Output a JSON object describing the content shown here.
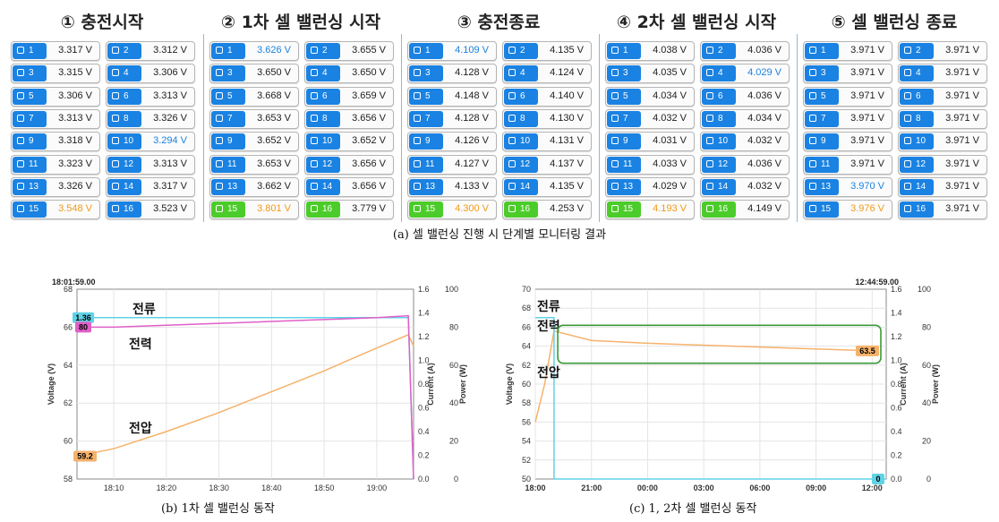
{
  "panels": [
    {
      "title": "① 충전시작",
      "cells": [
        {
          "n": "1",
          "v": "3.317 V",
          "c": "",
          "g": false
        },
        {
          "n": "2",
          "v": "3.312 V",
          "c": "",
          "g": false
        },
        {
          "n": "3",
          "v": "3.315 V",
          "c": "",
          "g": false
        },
        {
          "n": "4",
          "v": "3.306 V",
          "c": "",
          "g": false
        },
        {
          "n": "5",
          "v": "3.306 V",
          "c": "",
          "g": false
        },
        {
          "n": "6",
          "v": "3.313 V",
          "c": "",
          "g": false
        },
        {
          "n": "7",
          "v": "3.313 V",
          "c": "",
          "g": false
        },
        {
          "n": "8",
          "v": "3.326 V",
          "c": "",
          "g": false
        },
        {
          "n": "9",
          "v": "3.318 V",
          "c": "",
          "g": false
        },
        {
          "n": "10",
          "v": "3.294 V",
          "c": "blue",
          "g": false
        },
        {
          "n": "11",
          "v": "3.323 V",
          "c": "",
          "g": false
        },
        {
          "n": "12",
          "v": "3.313 V",
          "c": "",
          "g": false
        },
        {
          "n": "13",
          "v": "3.326 V",
          "c": "",
          "g": false
        },
        {
          "n": "14",
          "v": "3.317 V",
          "c": "",
          "g": false
        },
        {
          "n": "15",
          "v": "3.548 V",
          "c": "orange",
          "g": false
        },
        {
          "n": "16",
          "v": "3.523 V",
          "c": "",
          "g": false
        }
      ]
    },
    {
      "title": "② 1차 셀 밸런싱 시작",
      "cells": [
        {
          "n": "1",
          "v": "3.626 V",
          "c": "blue",
          "g": false
        },
        {
          "n": "2",
          "v": "3.655 V",
          "c": "",
          "g": false
        },
        {
          "n": "3",
          "v": "3.650 V",
          "c": "",
          "g": false
        },
        {
          "n": "4",
          "v": "3.650 V",
          "c": "",
          "g": false
        },
        {
          "n": "5",
          "v": "3.668 V",
          "c": "",
          "g": false
        },
        {
          "n": "6",
          "v": "3.659 V",
          "c": "",
          "g": false
        },
        {
          "n": "7",
          "v": "3.653 V",
          "c": "",
          "g": false
        },
        {
          "n": "8",
          "v": "3.656 V",
          "c": "",
          "g": false
        },
        {
          "n": "9",
          "v": "3.652 V",
          "c": "",
          "g": false
        },
        {
          "n": "10",
          "v": "3.652 V",
          "c": "",
          "g": false
        },
        {
          "n": "11",
          "v": "3.653 V",
          "c": "",
          "g": false
        },
        {
          "n": "12",
          "v": "3.656 V",
          "c": "",
          "g": false
        },
        {
          "n": "13",
          "v": "3.662 V",
          "c": "",
          "g": false
        },
        {
          "n": "14",
          "v": "3.656 V",
          "c": "",
          "g": false
        },
        {
          "n": "15",
          "v": "3.801 V",
          "c": "orange",
          "g": true
        },
        {
          "n": "16",
          "v": "3.779 V",
          "c": "",
          "g": true
        }
      ]
    },
    {
      "title": "③ 충전종료",
      "cells": [
        {
          "n": "1",
          "v": "4.109 V",
          "c": "blue",
          "g": false
        },
        {
          "n": "2",
          "v": "4.135 V",
          "c": "",
          "g": false
        },
        {
          "n": "3",
          "v": "4.128 V",
          "c": "",
          "g": false
        },
        {
          "n": "4",
          "v": "4.124 V",
          "c": "",
          "g": false
        },
        {
          "n": "5",
          "v": "4.148 V",
          "c": "",
          "g": false
        },
        {
          "n": "6",
          "v": "4.140 V",
          "c": "",
          "g": false
        },
        {
          "n": "7",
          "v": "4.128 V",
          "c": "",
          "g": false
        },
        {
          "n": "8",
          "v": "4.130 V",
          "c": "",
          "g": false
        },
        {
          "n": "9",
          "v": "4.126 V",
          "c": "",
          "g": false
        },
        {
          "n": "10",
          "v": "4.131 V",
          "c": "",
          "g": false
        },
        {
          "n": "11",
          "v": "4.127 V",
          "c": "",
          "g": false
        },
        {
          "n": "12",
          "v": "4.137 V",
          "c": "",
          "g": false
        },
        {
          "n": "13",
          "v": "4.133 V",
          "c": "",
          "g": false
        },
        {
          "n": "14",
          "v": "4.135 V",
          "c": "",
          "g": false
        },
        {
          "n": "15",
          "v": "4.300 V",
          "c": "orange",
          "g": true
        },
        {
          "n": "16",
          "v": "4.253 V",
          "c": "",
          "g": true
        }
      ]
    },
    {
      "title": "④ 2차 셀 밸런싱 시작",
      "cells": [
        {
          "n": "1",
          "v": "4.038 V",
          "c": "",
          "g": false
        },
        {
          "n": "2",
          "v": "4.036 V",
          "c": "",
          "g": false
        },
        {
          "n": "3",
          "v": "4.035 V",
          "c": "",
          "g": false
        },
        {
          "n": "4",
          "v": "4.029 V",
          "c": "blue",
          "g": false
        },
        {
          "n": "5",
          "v": "4.034 V",
          "c": "",
          "g": false
        },
        {
          "n": "6",
          "v": "4.036 V",
          "c": "",
          "g": false
        },
        {
          "n": "7",
          "v": "4.032 V",
          "c": "",
          "g": false
        },
        {
          "n": "8",
          "v": "4.034 V",
          "c": "",
          "g": false
        },
        {
          "n": "9",
          "v": "4.031 V",
          "c": "",
          "g": false
        },
        {
          "n": "10",
          "v": "4.032 V",
          "c": "",
          "g": false
        },
        {
          "n": "11",
          "v": "4.033 V",
          "c": "",
          "g": false
        },
        {
          "n": "12",
          "v": "4.036 V",
          "c": "",
          "g": false
        },
        {
          "n": "13",
          "v": "4.029 V",
          "c": "",
          "g": false
        },
        {
          "n": "14",
          "v": "4.032 V",
          "c": "",
          "g": false
        },
        {
          "n": "15",
          "v": "4.193 V",
          "c": "orange",
          "g": true
        },
        {
          "n": "16",
          "v": "4.149 V",
          "c": "",
          "g": true
        }
      ]
    },
    {
      "title": "⑤ 셀 밸런싱 종료",
      "cells": [
        {
          "n": "1",
          "v": "3.971 V",
          "c": "",
          "g": false
        },
        {
          "n": "2",
          "v": "3.971 V",
          "c": "",
          "g": false
        },
        {
          "n": "3",
          "v": "3.971 V",
          "c": "",
          "g": false
        },
        {
          "n": "4",
          "v": "3.971 V",
          "c": "",
          "g": false
        },
        {
          "n": "5",
          "v": "3.971 V",
          "c": "",
          "g": false
        },
        {
          "n": "6",
          "v": "3.971 V",
          "c": "",
          "g": false
        },
        {
          "n": "7",
          "v": "3.971 V",
          "c": "",
          "g": false
        },
        {
          "n": "8",
          "v": "3.971 V",
          "c": "",
          "g": false
        },
        {
          "n": "9",
          "v": "3.971 V",
          "c": "",
          "g": false
        },
        {
          "n": "10",
          "v": "3.971 V",
          "c": "",
          "g": false
        },
        {
          "n": "11",
          "v": "3.971 V",
          "c": "",
          "g": false
        },
        {
          "n": "12",
          "v": "3.971 V",
          "c": "",
          "g": false
        },
        {
          "n": "13",
          "v": "3.970 V",
          "c": "blue",
          "g": false
        },
        {
          "n": "14",
          "v": "3.971 V",
          "c": "",
          "g": false
        },
        {
          "n": "15",
          "v": "3.976 V",
          "c": "orange",
          "g": false
        },
        {
          "n": "16",
          "v": "3.971 V",
          "c": "",
          "g": false
        }
      ]
    }
  ],
  "captions": {
    "a": "(a) 셀 밸런싱 진행 시 단계별 모니터링 결과",
    "b": "(b) 1차 셀 밸런싱 동작",
    "c": "(c) 1, 2차 셀 밸런싱 동작"
  },
  "colors": {
    "voltage": "#f5b26b",
    "current": "#5fd3e6",
    "power": "#e05fc9",
    "badge": "#1a82e2",
    "badge_green": "#4ccc2a",
    "box": "#3a9a3a"
  },
  "charts": [
    {
      "timestamp": "18:01:59.00",
      "ylabel": "Voltage (V)",
      "current_label": "Current (A)",
      "power_label": "Power (W)",
      "v_ticks": [
        "68",
        "66",
        "64",
        "62",
        "60",
        "58"
      ],
      "c_ticks": [
        "1.6",
        "1.4",
        "1.2",
        "1.0",
        "0.8",
        "0.6",
        "0.4",
        "0.2",
        "0.0"
      ],
      "p_ticks": [
        "100",
        "80",
        "60",
        "40",
        "20",
        "0"
      ],
      "x_ticks": [
        "18:10",
        "18:20",
        "18:30",
        "18:40",
        "18:50",
        "19:00"
      ],
      "annotations": {
        "current": "전류",
        "power": "전력",
        "voltage": "전압"
      },
      "markers": {
        "current": "1.36",
        "power": "80",
        "voltage": "59.2"
      }
    },
    {
      "timestamp": "12:44:59.00",
      "ylabel": "Voltage (V)",
      "current_label": "Current (A)",
      "power_label": "Power (W)",
      "v_ticks": [
        "70",
        "68",
        "66",
        "64",
        "62",
        "60",
        "58",
        "56",
        "54",
        "52",
        "50"
      ],
      "c_ticks": [
        "1.6",
        "1.4",
        "1.2",
        "1.0",
        "0.8",
        "0.6",
        "0.4",
        "0.2",
        "0.0"
      ],
      "p_ticks": [
        "100",
        "80",
        "60",
        "40",
        "20",
        "0"
      ],
      "x_ticks": [
        "18:00",
        "21:00",
        "00:00",
        "03:00",
        "06:00",
        "09:00",
        "12:00"
      ],
      "annotations": {
        "current": "전류",
        "power": "전력",
        "voltage": "전압"
      },
      "markers": {
        "voltage": "63.5",
        "current": "0"
      }
    }
  ],
  "chart_data": [
    {
      "type": "line",
      "x": [
        "18:03",
        "18:10",
        "18:20",
        "18:30",
        "18:40",
        "18:50",
        "19:00",
        "19:06",
        "19:07"
      ],
      "series": [
        {
          "name": "전압",
          "axis": "Voltage (V)",
          "values": [
            59.2,
            59.6,
            60.5,
            61.5,
            62.6,
            63.7,
            64.9,
            65.6,
            65.0
          ]
        },
        {
          "name": "전류",
          "axis": "Current (A)",
          "values": [
            1.36,
            1.36,
            1.36,
            1.36,
            1.36,
            1.36,
            1.36,
            1.36,
            0.0
          ]
        },
        {
          "name": "전력",
          "axis": "Power (W)",
          "values": [
            80,
            80,
            81,
            82,
            83,
            84,
            85,
            86,
            0
          ]
        }
      ],
      "ylim": [
        58,
        68
      ],
      "y2lim": [
        0,
        1.6
      ],
      "y3lim": [
        0,
        100
      ]
    },
    {
      "type": "line",
      "x": [
        "18:00",
        "18:30",
        "19:00",
        "21:00",
        "00:00",
        "03:00",
        "06:00",
        "09:00",
        "12:00"
      ],
      "series": [
        {
          "name": "전압",
          "axis": "Voltage (V)",
          "values": [
            56.0,
            60.0,
            65.6,
            64.6,
            64.3,
            64.1,
            63.9,
            63.7,
            63.5
          ]
        },
        {
          "name": "전류",
          "axis": "Current (A)",
          "values": [
            1.36,
            1.36,
            0.0,
            0.0,
            0.0,
            0.0,
            0.0,
            0.0,
            0.0
          ]
        }
      ],
      "ylim": [
        50,
        70
      ],
      "y2lim": [
        0,
        1.6
      ],
      "y3lim": [
        0,
        100
      ]
    }
  ]
}
